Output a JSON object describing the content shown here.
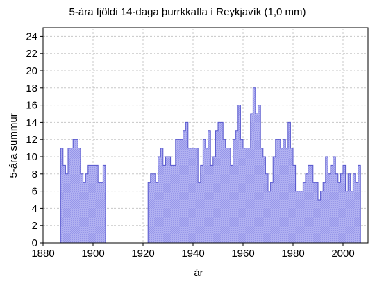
{
  "chart_data": {
    "type": "area",
    "title": "5-ára fjöldi 14-daga þurrkkafla í Reykjavík  (1,0 mm)",
    "xlabel": "ár",
    "ylabel": "5-ára summur",
    "xlim": [
      1880,
      2010
    ],
    "ylim": [
      0,
      25
    ],
    "xticks": [
      1880,
      1900,
      1920,
      1940,
      1960,
      1980,
      2000
    ],
    "yticks": [
      0,
      2,
      4,
      6,
      8,
      10,
      12,
      14,
      16,
      18,
      20,
      22,
      24
    ],
    "grid": true,
    "step": true,
    "fill_color": "#b3b3f2",
    "line_color": "#5555cc",
    "series": [
      {
        "segments": [
          {
            "x": [
              1887,
              1888,
              1889,
              1890,
              1891,
              1892,
              1893,
              1894,
              1895,
              1896,
              1897,
              1898,
              1899,
              1900,
              1901,
              1902,
              1903,
              1904
            ],
            "y": [
              11,
              9,
              8,
              11,
              11,
              12,
              12,
              11,
              8,
              7,
              8,
              9,
              9,
              9,
              9,
              7,
              7,
              9
            ]
          },
          {
            "x": [
              1922,
              1923,
              1924,
              1925,
              1926,
              1927,
              1928,
              1929,
              1930,
              1931,
              1932,
              1933,
              1934,
              1935,
              1936,
              1937,
              1938,
              1939,
              1940,
              1941,
              1942,
              1943,
              1944,
              1945,
              1946,
              1947,
              1948,
              1949,
              1950,
              1951,
              1952,
              1953,
              1954,
              1955,
              1956,
              1957,
              1958,
              1959,
              1960,
              1961,
              1962,
              1963,
              1964,
              1965,
              1966,
              1967,
              1968,
              1969,
              1970,
              1971,
              1972,
              1973,
              1974,
              1975,
              1976,
              1977,
              1978,
              1979,
              1980,
              1981,
              1982,
              1983,
              1984,
              1985,
              1986,
              1987,
              1988,
              1989,
              1990,
              1991,
              1992,
              1993,
              1994,
              1995,
              1996,
              1997,
              1998,
              1999,
              2000,
              2001,
              2002,
              2003,
              2004,
              2005,
              2006
            ],
            "y": [
              7,
              8,
              8,
              7,
              10,
              11,
              9,
              10,
              10,
              9,
              9,
              12,
              12,
              12,
              13,
              14,
              11,
              11,
              11,
              11,
              7,
              9,
              12,
              11,
              13,
              9,
              10,
              13,
              14,
              14,
              12,
              11,
              11,
              9,
              12,
              13,
              16,
              12,
              11,
              11,
              11,
              15,
              18,
              15,
              16,
              11,
              10,
              8,
              6,
              7,
              10,
              12,
              12,
              11,
              12,
              11,
              14,
              11,
              9,
              6,
              6,
              6,
              7,
              8,
              9,
              9,
              7,
              7,
              5,
              6,
              7,
              10,
              8,
              9,
              10,
              8,
              7,
              8,
              9,
              6,
              8,
              6,
              8,
              7,
              9
            ]
          }
        ]
      }
    ]
  }
}
